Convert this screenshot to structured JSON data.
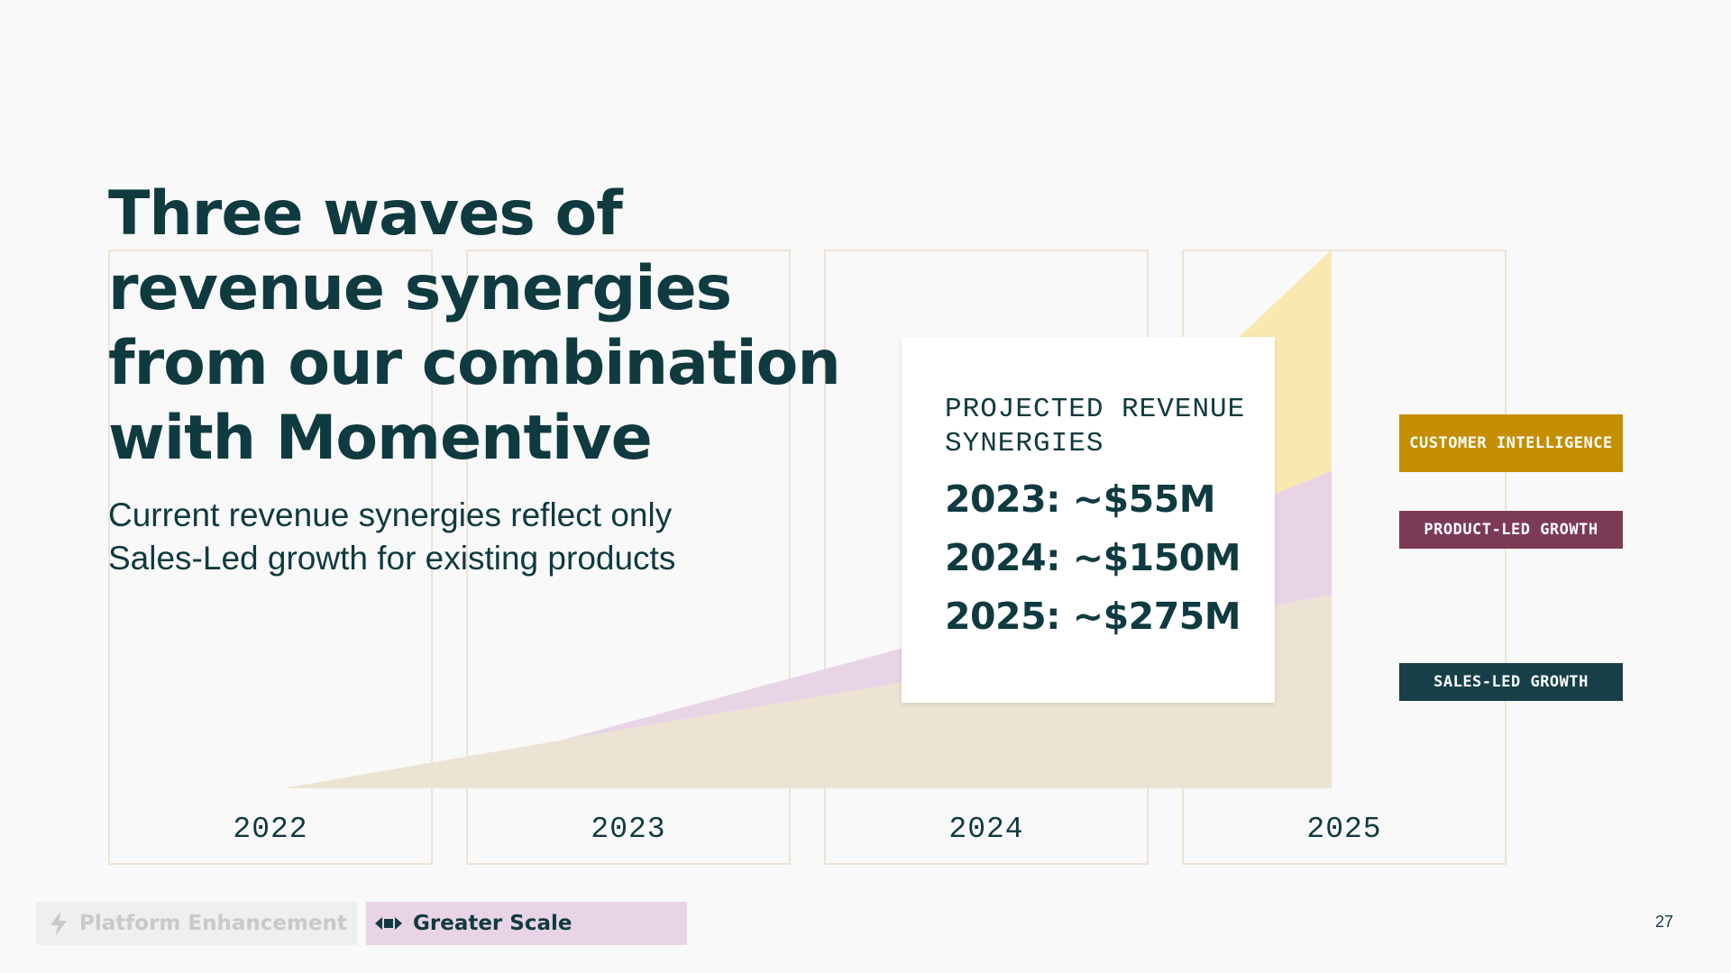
{
  "slide": {
    "title": "Three waves of revenue synergies from our combination with Momentive",
    "subtitle": "Current revenue synergies reflect only Sales-Led growth for existing products",
    "page_number": "27"
  },
  "card": {
    "heading": "PROJECTED REVENUE SYNERGIES",
    "values": [
      "2023: ~$55M",
      "2024: ~$150M",
      "2025: ~$275M"
    ]
  },
  "legend": {
    "customer_intelligence": "CUSTOMER INTELLIGENCE",
    "product_led_growth": "PRODUCT-LED GROWTH",
    "sales_led_growth": "SALES-LED GROWTH"
  },
  "pills": {
    "platform_enhancement": "Platform Enhancement",
    "greater_scale": "Greater Scale"
  },
  "colors": {
    "sales_led": "#ede3d3",
    "product_led": "#e8d4e6",
    "customer_intelligence": "#f9e8b0",
    "badge_ci": "#c48e00",
    "badge_plg": "#7b3b56",
    "badge_slg": "#173f47",
    "text": "#0f3a40"
  },
  "chart_data": {
    "type": "area",
    "stacked": true,
    "categories": [
      "2022",
      "2023",
      "2024",
      "2025"
    ],
    "x_points": [
      2022.0,
      2022.8,
      2023.8,
      2025.0
    ],
    "series": [
      {
        "name": "SALES-LED GROWTH",
        "values": [
          0,
          9,
          20,
          36
        ]
      },
      {
        "name": "PRODUCT-LED GROWTH",
        "values": [
          0,
          0,
          6.5,
          23
        ]
      },
      {
        "name": "CUSTOMER INTELLIGENCE",
        "values": [
          0,
          0,
          0,
          41
        ]
      }
    ],
    "ylim": [
      0,
      100
    ],
    "grid": false
  }
}
